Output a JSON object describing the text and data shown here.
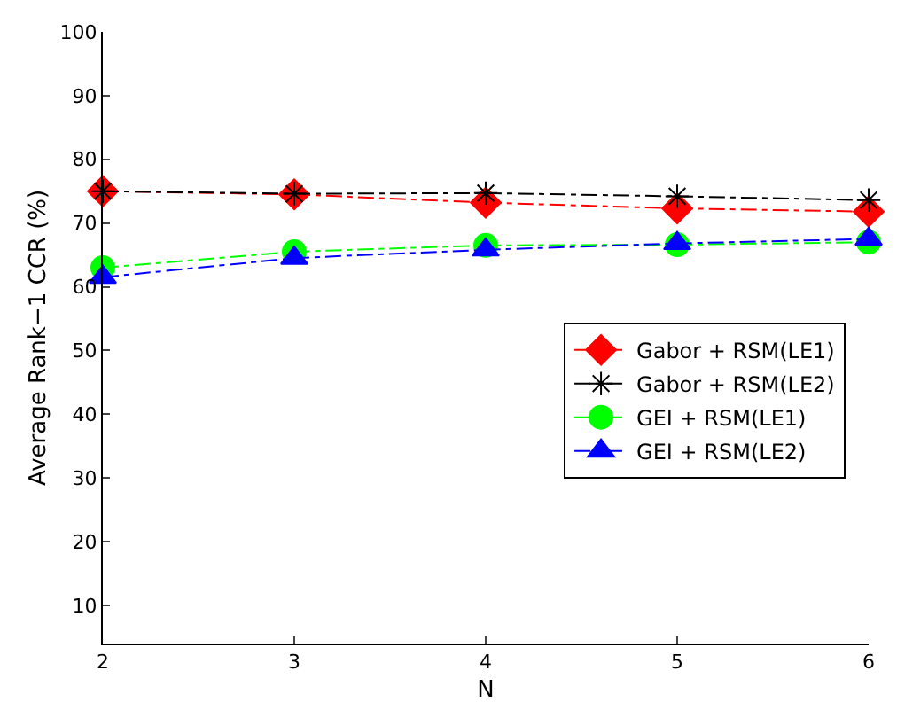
{
  "chart_data": {
    "type": "line",
    "xlabel": "N",
    "ylabel": "Average Rank−1 CCR (%)",
    "x": [
      2,
      3,
      4,
      5,
      6
    ],
    "series": [
      {
        "name": "Gabor + RSM(LE1)",
        "color": "#ff0000",
        "marker": "diamond",
        "values": [
          75,
          74.5,
          73.2,
          72.3,
          71.8
        ]
      },
      {
        "name": "Gabor + RSM(LE2)",
        "color": "#000000",
        "marker": "cross",
        "values": [
          75,
          74.6,
          74.7,
          74.2,
          73.6
        ]
      },
      {
        "name": "GEI + RSM(LE1)",
        "color": "#00ff00",
        "marker": "circle",
        "values": [
          63,
          65.5,
          66.5,
          66.6,
          67
        ]
      },
      {
        "name": "GEI + RSM(LE2)",
        "color": "#0000ff",
        "marker": "triangle",
        "values": [
          61.5,
          64.5,
          65.8,
          66.8,
          67.5
        ]
      }
    ],
    "line_style": "dashed",
    "xlim": [
      2,
      6
    ],
    "xticks": [
      2,
      3,
      4,
      5,
      6
    ],
    "ylim": [
      4,
      100
    ],
    "yticks": [
      10,
      20,
      30,
      40,
      50,
      60,
      70,
      80,
      90,
      100
    ],
    "legend": "bottom right"
  }
}
